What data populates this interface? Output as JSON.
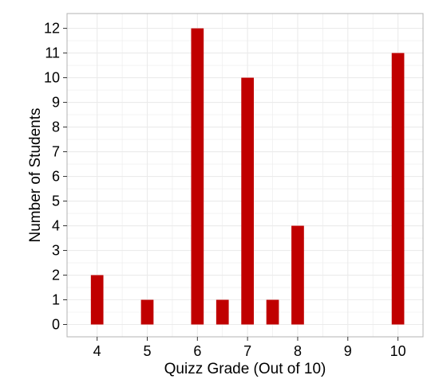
{
  "chart_data": {
    "type": "bar",
    "title": "",
    "xlabel": "Quizz Grade (Out of 10)",
    "ylabel": "Number of Students",
    "x": [
      4,
      5,
      6,
      6.5,
      7,
      7.5,
      8,
      10
    ],
    "values": [
      2,
      1,
      12,
      1,
      10,
      1,
      4,
      11
    ],
    "xlim": [
      3.4,
      10.5
    ],
    "ylim": [
      -0.5,
      12.6
    ],
    "x_ticks": [
      4,
      5,
      6,
      7,
      8,
      9,
      10
    ],
    "x_tick_labels": [
      "4",
      "5",
      "6",
      "7",
      "8",
      "9",
      "10"
    ],
    "y_ticks": [
      0,
      1,
      2,
      3,
      4,
      5,
      6,
      7,
      8,
      9,
      10,
      11,
      12
    ],
    "y_tick_labels": [
      "0",
      "1",
      "2",
      "3",
      "4",
      "5",
      "6",
      "7",
      "8",
      "9",
      "10",
      "11",
      "12"
    ],
    "bar_color": "#c00000",
    "grid": true,
    "grid_color": "#ebebeb",
    "panel_border_color": "#b3b3b3",
    "legend": "none"
  }
}
